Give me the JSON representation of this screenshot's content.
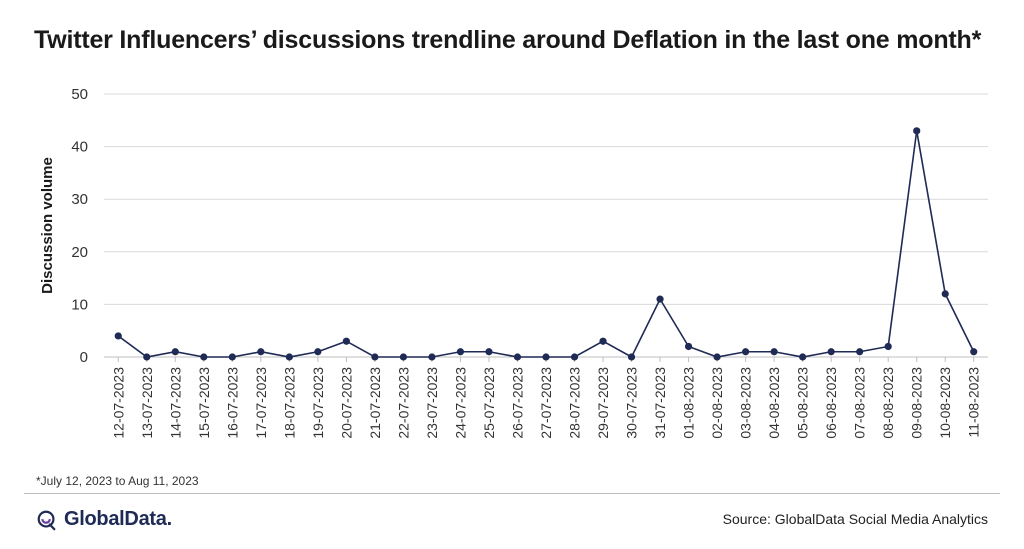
{
  "title": "Twitter Influencers’ discussions trendline around Deflation in the last one month*",
  "footnote": "*July 12, 2023 to Aug 11, 2023",
  "brand": {
    "name": "GlobalData.",
    "icon": "globaldata-logo-icon"
  },
  "source": "Source: GlobalData Social Media Analytics",
  "colors": {
    "line": "#1f2a55",
    "grid": "#d9d9d9",
    "axis": "#bfbfbf",
    "logo": "#1f2a55",
    "logo_accent": "#6a3fa0"
  },
  "chart_data": {
    "type": "line",
    "title": "Twitter Influencers’ discussions trendline around Deflation in the last one month*",
    "xlabel": "",
    "ylabel": "Discussion volume",
    "ylim": [
      0,
      50
    ],
    "yticks": [
      0,
      10,
      20,
      30,
      40,
      50
    ],
    "grid": true,
    "legend": "none",
    "categories": [
      "12-07-2023",
      "13-07-2023",
      "14-07-2023",
      "15-07-2023",
      "16-07-2023",
      "17-07-2023",
      "18-07-2023",
      "19-07-2023",
      "20-07-2023",
      "21-07-2023",
      "22-07-2023",
      "23-07-2023",
      "24-07-2023",
      "25-07-2023",
      "26-07-2023",
      "27-07-2023",
      "28-07-2023",
      "29-07-2023",
      "30-07-2023",
      "31-07-2023",
      "01-08-2023",
      "02-08-2023",
      "03-08-2023",
      "04-08-2023",
      "05-08-2023",
      "06-08-2023",
      "07-08-2023",
      "08-08-2023",
      "09-08-2023",
      "10-08-2023",
      "11-08-2023"
    ],
    "series": [
      {
        "values": [
          4,
          0,
          1,
          0,
          0,
          1,
          0,
          1,
          3,
          0,
          0,
          0,
          1,
          1,
          0,
          0,
          0,
          3,
          0,
          11,
          2,
          0,
          1,
          1,
          0,
          1,
          1,
          2,
          43,
          12,
          1
        ]
      }
    ]
  }
}
